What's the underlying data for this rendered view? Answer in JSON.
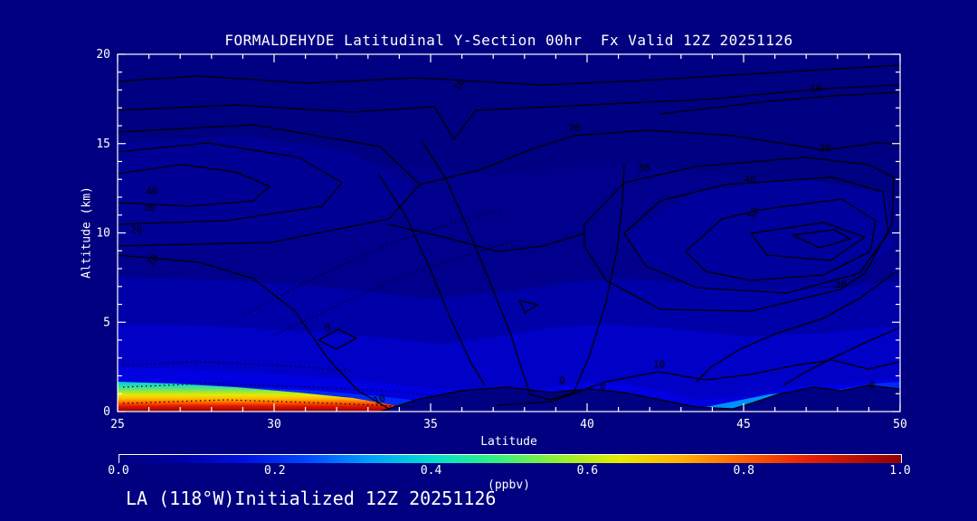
{
  "colors": {
    "background": "#000080",
    "frame": "#FFFFFF",
    "text": "#FFFFFF",
    "contour_line": "#000000"
  },
  "chart_data": {
    "type": "heatmap",
    "subtype": "filled-contour-cross-section",
    "title": "FORMALDEHYDE Latitudinal Y-Section 00hr  Fx Valid 12Z 20251126",
    "footer": "LA (118°W)Initialized 12Z 20251126",
    "xlabel": "Latitude",
    "ylabel": "Altitude (km)",
    "xlim": [
      25,
      50
    ],
    "ylim": [
      0,
      20
    ],
    "x_major_ticks": [
      "25",
      "30",
      "35",
      "40",
      "45",
      "50"
    ],
    "x_minor_step": 1,
    "y_major_ticks": [
      "0",
      "5",
      "10",
      "15",
      "20"
    ],
    "y_minor_step": 1,
    "grid": false,
    "fill_variable": "formaldehyde concentration",
    "fill_units": "ppbv",
    "fill_range": [
      0.0,
      1.0
    ],
    "colorbar": {
      "tick_labels": [
        "0.0",
        "0.2",
        "0.4",
        "0.6",
        "0.8",
        "1.0"
      ],
      "unit_label": "(ppbv)",
      "gradient": [
        {
          "pos": 0.0,
          "color": "#000082"
        },
        {
          "pos": 0.08,
          "color": "#0000A8"
        },
        {
          "pos": 0.16,
          "color": "#0010E0"
        },
        {
          "pos": 0.24,
          "color": "#0048FF"
        },
        {
          "pos": 0.32,
          "color": "#00A0FF"
        },
        {
          "pos": 0.4,
          "color": "#00E0D0"
        },
        {
          "pos": 0.48,
          "color": "#30F080"
        },
        {
          "pos": 0.56,
          "color": "#90F030"
        },
        {
          "pos": 0.64,
          "color": "#E8E800"
        },
        {
          "pos": 0.72,
          "color": "#FFB000"
        },
        {
          "pos": 0.8,
          "color": "#FF6000"
        },
        {
          "pos": 0.88,
          "color": "#E82000"
        },
        {
          "pos": 1.0,
          "color": "#900000"
        }
      ]
    },
    "line_contour_levels": [
      0,
      10,
      20,
      30,
      40,
      50
    ],
    "contour_labels": [
      {
        "value": "40",
        "lat": 26.1,
        "km": 12.15,
        "rot": 0
      },
      {
        "value": "30",
        "lat": 26.0,
        "km": 11.25,
        "rot": 0
      },
      {
        "value": "20",
        "lat": 25.6,
        "km": 10.0,
        "rot": 0
      },
      {
        "value": "10",
        "lat": 26.2,
        "km": 8.35,
        "rot": -50
      },
      {
        "value": "10",
        "lat": 36.0,
        "km": 18.2,
        "rot": -60
      },
      {
        "value": "10",
        "lat": 47.3,
        "km": 17.9,
        "rot": 0
      },
      {
        "value": "20",
        "lat": 39.6,
        "km": 15.7,
        "rot": 0
      },
      {
        "value": "20",
        "lat": 47.6,
        "km": 14.55,
        "rot": 0
      },
      {
        "value": "30",
        "lat": 41.8,
        "km": 13.45,
        "rot": 0
      },
      {
        "value": "40",
        "lat": 45.2,
        "km": 12.8,
        "rot": 0
      },
      {
        "value": "50",
        "lat": 45.4,
        "km": 11.0,
        "rot": -55
      },
      {
        "value": "30",
        "lat": 48.1,
        "km": 6.9,
        "rot": 0
      },
      {
        "value": "10",
        "lat": 42.3,
        "km": 2.45,
        "rot": 0
      },
      {
        "value": "0",
        "lat": 39.2,
        "km": 1.55,
        "rot": 0
      },
      {
        "value": "0",
        "lat": 40.5,
        "km": 1.25,
        "rot": 0
      },
      {
        "value": "0",
        "lat": 49.1,
        "km": 1.3,
        "rot": 0
      },
      {
        "value": "10",
        "lat": 33.4,
        "km": 0.5,
        "rot": -20
      },
      {
        "value": "0",
        "lat": 31.7,
        "km": 4.5,
        "rot": 0
      }
    ],
    "features": [
      "Surface maximum above 1.0 ppbv between 25N and 33N below about 1.5 km (red/orange/yellow plume)",
      "Shallow enhanced layer 0.2-0.4 ppbv (cyan) extending near the surface to about 37N",
      "Near-zero fill below about 1.5 km from 34N to 50N",
      "Closed line-contour maximum (level 50) centered near 47.5N at about 10 km",
      "Secondary line-contour maximum (level 40) near 26N at about 12.5 km",
      "Dotted (sub-interval) contours in the lower-left boundary layer and mid-level band"
    ]
  }
}
